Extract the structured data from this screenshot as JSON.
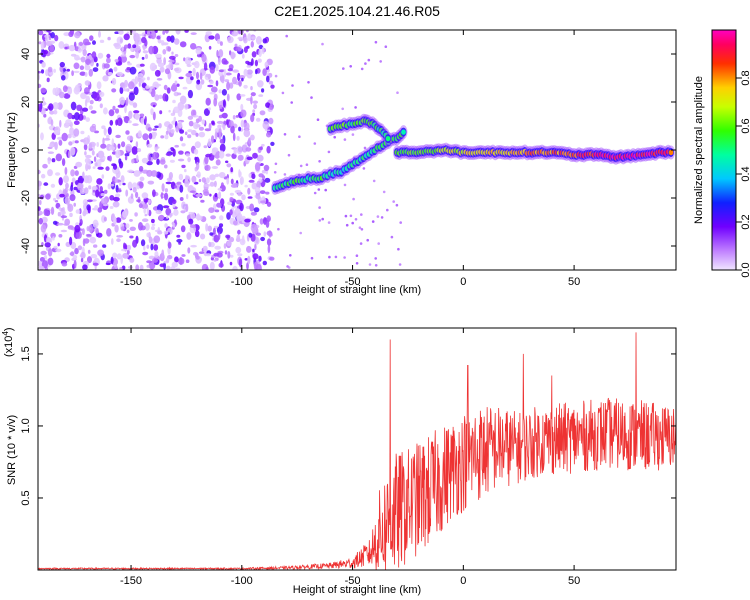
{
  "title": "C2E1.2025.104.21.46.R05",
  "colors": {
    "snr_line": "#ee3333",
    "spectrum_cold": "#7a00ff",
    "spectrum_hot": "#ff0000",
    "background": "#ffffff",
    "axis": "#000000"
  },
  "chart_data": [
    {
      "type": "heatmap",
      "name_on_screen": "",
      "xlabel": "Height of straight line (km)",
      "ylabel": "Frequency (Hz)",
      "xlim": [
        -192,
        96
      ],
      "ylim": [
        -50,
        50
      ],
      "x_ticks": [
        -150,
        -100,
        -50,
        0,
        50
      ],
      "y_ticks": [
        -40,
        -20,
        0,
        20,
        40
      ],
      "colorbar": {
        "label": "Normalized spectral amplitude",
        "range": [
          0,
          1
        ],
        "ticks": [
          "0.0",
          "0.2",
          "0.4",
          "0.6",
          "0.8"
        ],
        "tick_values": [
          0.0,
          0.2,
          0.4,
          0.6,
          0.8
        ],
        "colormap": "rainbow-magenta"
      },
      "noise_region": {
        "x_range": [
          -192,
          -86
        ],
        "amplitude_range": [
          0.02,
          0.22
        ]
      },
      "signal_path": [
        {
          "x": -85,
          "y": -16,
          "amp": 0.45
        },
        {
          "x": -80,
          "y": -14,
          "amp": 0.5
        },
        {
          "x": -75,
          "y": -13,
          "amp": 0.55
        },
        {
          "x": -70,
          "y": -12,
          "amp": 0.5
        },
        {
          "x": -65,
          "y": -12,
          "amp": 0.55
        },
        {
          "x": -60,
          "y": -10,
          "amp": 0.5
        },
        {
          "x": -55,
          "y": -9,
          "amp": 0.45
        },
        {
          "x": -50,
          "y": -6,
          "amp": 0.45
        },
        {
          "x": -45,
          "y": -3,
          "amp": 0.5
        },
        {
          "x": -40,
          "y": 0,
          "amp": 0.5
        },
        {
          "x": -35,
          "y": 3,
          "amp": 0.55
        },
        {
          "x": -30,
          "y": 5,
          "amp": 0.55
        },
        {
          "x": -26,
          "y": 8,
          "amp": 0.5
        }
      ],
      "upper_branch": [
        {
          "x": -60,
          "y": 9,
          "amp": 0.55
        },
        {
          "x": -55,
          "y": 10,
          "amp": 0.6
        },
        {
          "x": -50,
          "y": 11,
          "amp": 0.55
        },
        {
          "x": -45,
          "y": 12,
          "amp": 0.6
        },
        {
          "x": -41,
          "y": 11,
          "amp": 0.55
        },
        {
          "x": -37,
          "y": 8,
          "amp": 0.5
        },
        {
          "x": -33,
          "y": 4,
          "amp": 0.45
        }
      ],
      "main_band": [
        {
          "x": -30,
          "y": -1,
          "amp": 0.55
        },
        {
          "x": -20,
          "y": -1,
          "amp": 0.6
        },
        {
          "x": -10,
          "y": 0,
          "amp": 0.65
        },
        {
          "x": 0,
          "y": -1,
          "amp": 0.7
        },
        {
          "x": 10,
          "y": -1,
          "amp": 0.75
        },
        {
          "x": 20,
          "y": -1,
          "amp": 0.75
        },
        {
          "x": 30,
          "y": -1,
          "amp": 0.8
        },
        {
          "x": 40,
          "y": -1,
          "amp": 0.8
        },
        {
          "x": 50,
          "y": -2,
          "amp": 0.85
        },
        {
          "x": 60,
          "y": -2,
          "amp": 0.9
        },
        {
          "x": 70,
          "y": -3,
          "amp": 0.95
        },
        {
          "x": 80,
          "y": -2,
          "amp": 0.95
        },
        {
          "x": 90,
          "y": -1,
          "amp": 0.9
        },
        {
          "x": 95,
          "y": -1,
          "amp": 0.85
        }
      ]
    },
    {
      "type": "line",
      "xlabel": "Height of straight line (km)",
      "ylabel": "SNR (10 * v/v)",
      "y_scale_label": "(x10",
      "y_scale_exponent": "4",
      "y_scale_close": ")",
      "xlim": [
        -192,
        96
      ],
      "ylim": [
        0,
        1.68
      ],
      "x_ticks": [
        -150,
        -100,
        -50,
        0,
        50
      ],
      "y_ticks": [
        0.5,
        1.0,
        1.5
      ],
      "y_tick_labels": [
        "0.5",
        "1.0",
        "1.5"
      ],
      "series": [
        {
          "envelope": [
            {
              "x": -192,
              "mean": 0.01,
              "spread": 0.005
            },
            {
              "x": -100,
              "mean": 0.01,
              "spread": 0.005
            },
            {
              "x": -80,
              "mean": 0.015,
              "spread": 0.01
            },
            {
              "x": -60,
              "mean": 0.03,
              "spread": 0.02
            },
            {
              "x": -50,
              "mean": 0.05,
              "spread": 0.04
            },
            {
              "x": -42,
              "mean": 0.12,
              "spread": 0.1
            },
            {
              "x": -38,
              "mean": 0.25,
              "spread": 0.3
            },
            {
              "x": -33,
              "mean": 0.35,
              "spread": 0.45
            },
            {
              "x": -25,
              "mean": 0.45,
              "spread": 0.4
            },
            {
              "x": -15,
              "mean": 0.55,
              "spread": 0.4
            },
            {
              "x": -5,
              "mean": 0.7,
              "spread": 0.35
            },
            {
              "x": 5,
              "mean": 0.8,
              "spread": 0.35
            },
            {
              "x": 15,
              "mean": 0.85,
              "spread": 0.3
            },
            {
              "x": 25,
              "mean": 0.85,
              "spread": 0.25
            },
            {
              "x": 35,
              "mean": 0.9,
              "spread": 0.25
            },
            {
              "x": 50,
              "mean": 0.92,
              "spread": 0.25
            },
            {
              "x": 65,
              "mean": 0.95,
              "spread": 0.25
            },
            {
              "x": 80,
              "mean": 0.93,
              "spread": 0.25
            },
            {
              "x": 96,
              "mean": 0.92,
              "spread": 0.22
            }
          ],
          "peaks": [
            {
              "x": -33,
              "y": 1.6
            },
            {
              "x": 78,
              "y": 1.65
            },
            {
              "x": 27,
              "y": 1.5
            },
            {
              "x": 2,
              "y": 1.42
            },
            {
              "x": 40,
              "y": 1.35
            }
          ]
        }
      ]
    }
  ]
}
